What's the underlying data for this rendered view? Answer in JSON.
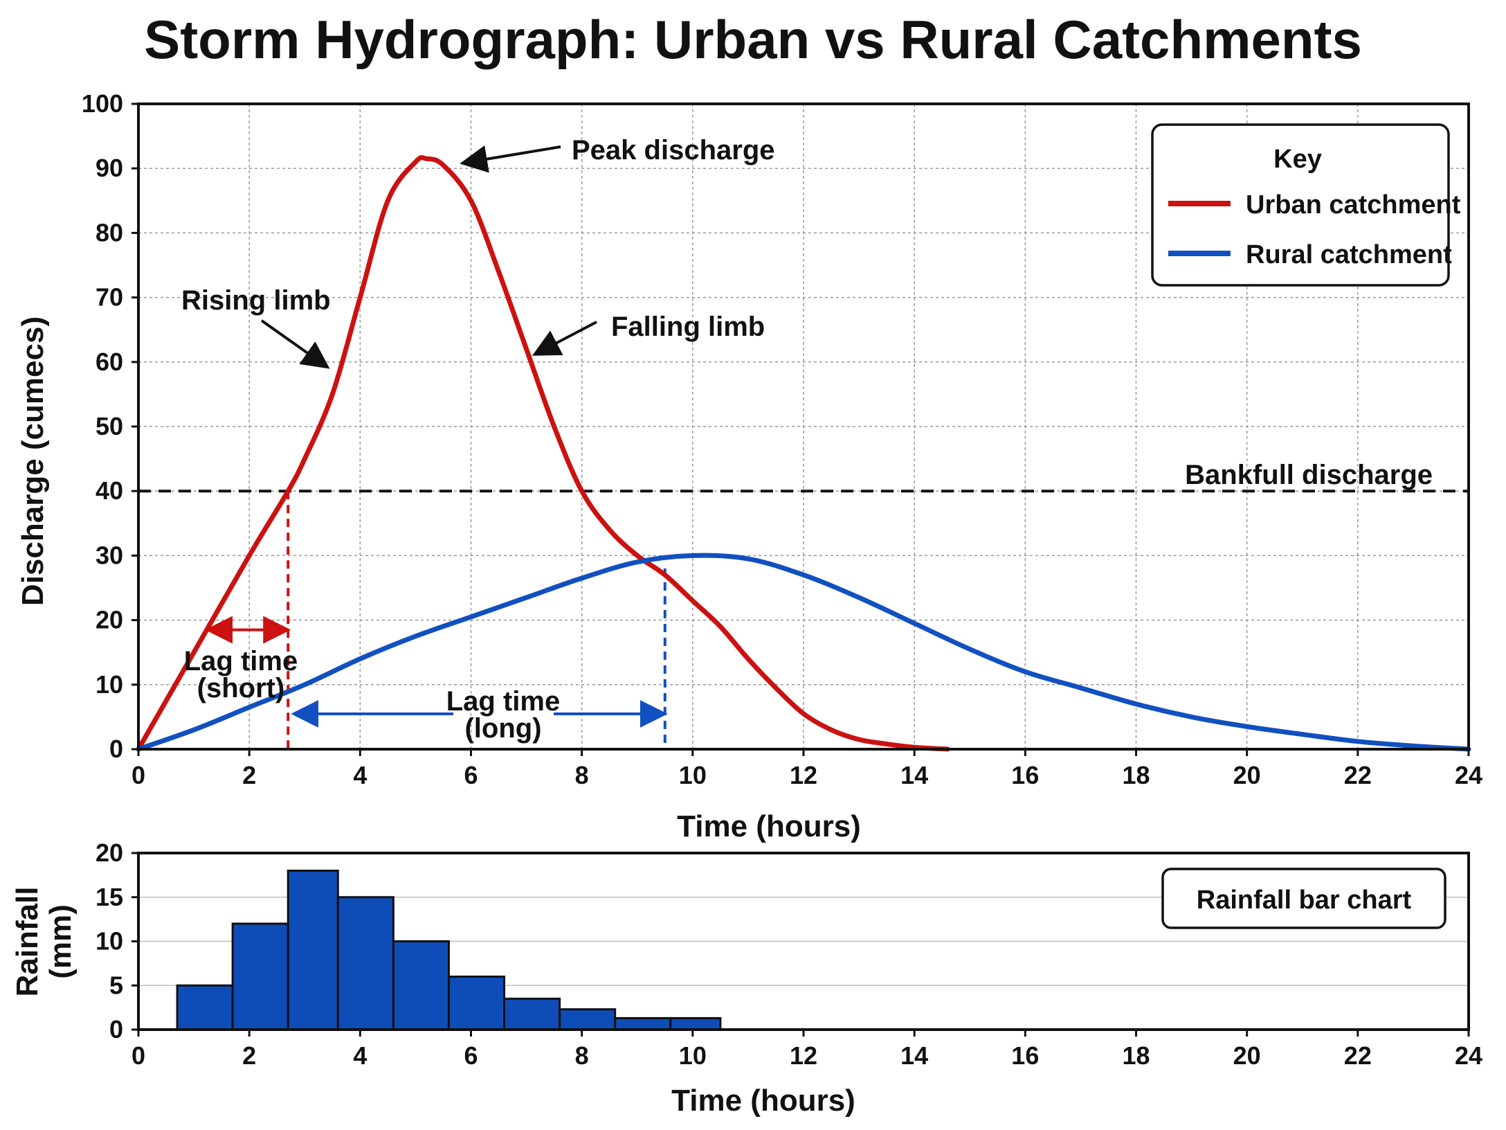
{
  "title": "Storm Hydrograph: Urban vs Rural Catchments",
  "colors": {
    "urban": "#cc1111",
    "rural": "#1150c0",
    "bar": "#0e4db8",
    "text": "#111111",
    "grid": "#9a9a9a"
  },
  "chart_data": [
    {
      "type": "line",
      "xlabel": "Time (hours)",
      "ylabel": "Discharge (cumecs)",
      "xlim": [
        0,
        24
      ],
      "ylim": [
        0,
        100
      ],
      "xticks": [
        0,
        2,
        4,
        6,
        8,
        10,
        12,
        14,
        16,
        18,
        20,
        22,
        24
      ],
      "yticks": [
        0,
        10,
        20,
        30,
        40,
        50,
        60,
        70,
        80,
        90,
        100
      ],
      "grid": true,
      "legend_title": "Key",
      "legend_position": "top-right",
      "series": [
        {
          "name": "Urban catchment",
          "color": "#cc1111",
          "x": [
            0,
            1,
            2,
            2.7,
            3,
            3.5,
            4,
            4.5,
            5,
            5.2,
            5.5,
            6,
            6.5,
            7,
            7.5,
            8,
            8.5,
            9,
            9.5,
            10,
            10.5,
            11,
            11.5,
            12,
            12.5,
            13,
            13.5,
            14,
            14.6
          ],
          "y": [
            0,
            15,
            30,
            40,
            45,
            55,
            70,
            85,
            91,
            91.5,
            90.5,
            85,
            74,
            62,
            50,
            40,
            34,
            30,
            27,
            23,
            19,
            14,
            9.5,
            5.5,
            3,
            1.5,
            0.8,
            0.3,
            0
          ]
        },
        {
          "name": "Rural catchment",
          "color": "#1150c0",
          "x": [
            0,
            1,
            2,
            3,
            4,
            5,
            6,
            7,
            8,
            9,
            10,
            11,
            12,
            13,
            14,
            15,
            16,
            17,
            18,
            19,
            20,
            21,
            22,
            23,
            24
          ],
          "y": [
            0,
            3,
            6.5,
            10,
            14,
            17.5,
            20.5,
            23.5,
            26.5,
            29,
            30,
            29.5,
            27,
            23.5,
            19.5,
            15.5,
            12,
            9.5,
            7,
            5,
            3.5,
            2.3,
            1.2,
            0.5,
            0
          ]
        }
      ],
      "reference_line": {
        "label": "Bankfull discharge",
        "y": 40
      },
      "annotations": {
        "peak": "Peak discharge",
        "rising": "Rising limb",
        "falling": "Falling limb",
        "urban_lag_line1": "Lag time",
        "urban_lag_line2": "(short)",
        "rural_lag_line1": "Lag time",
        "rural_lag_line2": "(long)"
      },
      "markers": {
        "urban_lag_x": 2.7,
        "rural_lag_x": 9.5,
        "urban_lag_arrow": [
          1.3,
          2.7
        ],
        "rural_lag_arrow": [
          2.8,
          9.5
        ]
      }
    },
    {
      "type": "bar",
      "title": "Rainfall bar chart",
      "xlabel": "Time (hours)",
      "ylabel": "Rainfall (mm)",
      "xlim": [
        0,
        24
      ],
      "ylim": [
        0,
        20
      ],
      "xticks": [
        0,
        2,
        4,
        6,
        8,
        10,
        12,
        14,
        16,
        18,
        20,
        22,
        24
      ],
      "yticks": [
        0,
        5,
        10,
        15,
        20
      ],
      "grid": true,
      "bars": [
        {
          "start": 0.7,
          "end": 1.7,
          "value": 5
        },
        {
          "start": 1.7,
          "end": 2.7,
          "value": 12
        },
        {
          "start": 2.7,
          "end": 3.6,
          "value": 18
        },
        {
          "start": 3.6,
          "end": 4.6,
          "value": 15
        },
        {
          "start": 4.6,
          "end": 5.6,
          "value": 10
        },
        {
          "start": 5.6,
          "end": 6.6,
          "value": 6
        },
        {
          "start": 6.6,
          "end": 7.6,
          "value": 3.5
        },
        {
          "start": 7.6,
          "end": 8.6,
          "value": 2.3
        },
        {
          "start": 8.6,
          "end": 9.6,
          "value": 1.3
        },
        {
          "start": 9.6,
          "end": 10.5,
          "value": 1.3
        }
      ]
    }
  ]
}
